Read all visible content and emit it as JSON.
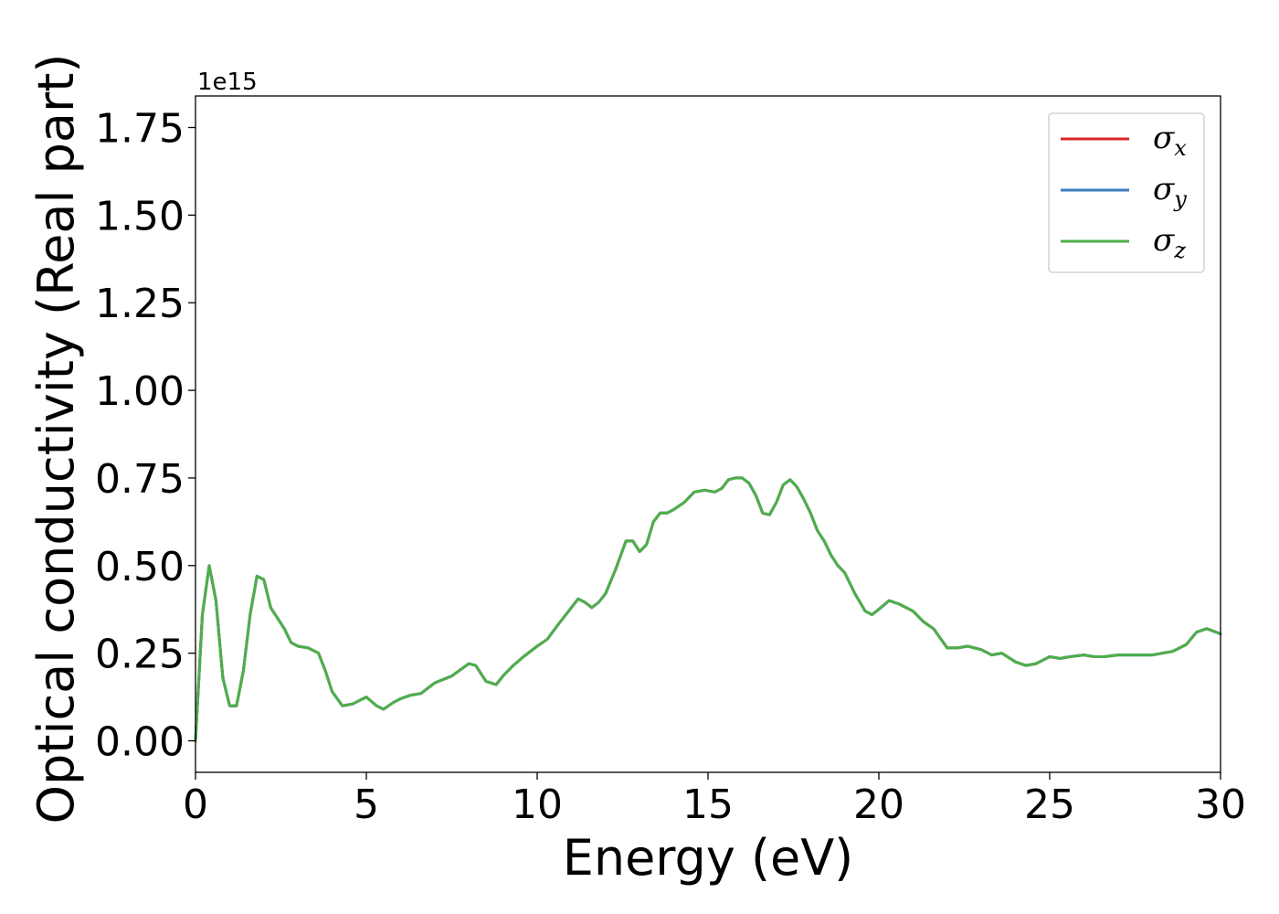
{
  "chart_data": {
    "type": "line",
    "title": "",
    "xlabel": "Energy (eV)",
    "ylabel": "Optical conductivity (Real part)",
    "y_offset_text": "1e15",
    "xlim": [
      0,
      30
    ],
    "ylim": [
      -0.09,
      1.84
    ],
    "xticks": [
      0,
      5,
      10,
      15,
      20,
      25,
      30
    ],
    "xtick_labels": [
      "0",
      "5",
      "10",
      "15",
      "20",
      "25",
      "30"
    ],
    "yticks": [
      0.0,
      0.25,
      0.5,
      0.75,
      1.0,
      1.25,
      1.5,
      1.75
    ],
    "ytick_labels": [
      "0.00",
      "0.25",
      "0.50",
      "0.75",
      "1.00",
      "1.25",
      "1.50",
      "1.75"
    ],
    "grid": false,
    "legend_position": "top-right",
    "legend": [
      {
        "symbol": "σ",
        "sub": "x",
        "color": "#d62728"
      },
      {
        "symbol": "σ",
        "sub": "y",
        "color": "#3b7dbf"
      },
      {
        "symbol": "σ",
        "sub": "z",
        "color": "#4daf4a"
      }
    ],
    "x": [
      0.0,
      0.2,
      0.4,
      0.6,
      0.8,
      1.0,
      1.2,
      1.4,
      1.6,
      1.8,
      2.0,
      2.2,
      2.4,
      2.6,
      2.8,
      3.0,
      3.3,
      3.6,
      3.8,
      4.0,
      4.3,
      4.6,
      5.0,
      5.3,
      5.5,
      5.8,
      6.0,
      6.3,
      6.6,
      7.0,
      7.5,
      8.0,
      8.2,
      8.5,
      8.8,
      9.0,
      9.3,
      9.6,
      10.0,
      10.3,
      10.6,
      11.0,
      11.2,
      11.4,
      11.6,
      11.8,
      12.0,
      12.3,
      12.6,
      12.8,
      13.0,
      13.2,
      13.4,
      13.6,
      13.8,
      14.0,
      14.3,
      14.6,
      14.9,
      15.2,
      15.4,
      15.6,
      15.8,
      16.0,
      16.2,
      16.4,
      16.6,
      16.8,
      17.0,
      17.2,
      17.4,
      17.6,
      17.8,
      18.0,
      18.2,
      18.4,
      18.6,
      18.8,
      19.0,
      19.3,
      19.6,
      19.8,
      20.0,
      20.3,
      20.6,
      21.0,
      21.3,
      21.6,
      22.0,
      22.3,
      22.6,
      23.0,
      23.3,
      23.6,
      24.0,
      24.3,
      24.6,
      25.0,
      25.3,
      25.6,
      26.0,
      26.3,
      26.6,
      27.0,
      27.3,
      27.6,
      28.0,
      28.3,
      28.6,
      29.0,
      29.3,
      29.6,
      30.0
    ],
    "series": [
      {
        "name": "σx",
        "color": "#d62728",
        "values": [
          0.0,
          0.36,
          0.5,
          0.4,
          0.18,
          0.1,
          0.1,
          0.2,
          0.36,
          0.47,
          0.46,
          0.38,
          0.35,
          0.32,
          0.28,
          0.27,
          0.265,
          0.25,
          0.2,
          0.14,
          0.1,
          0.105,
          0.125,
          0.1,
          0.09,
          0.11,
          0.12,
          0.13,
          0.135,
          0.165,
          0.185,
          0.22,
          0.215,
          0.17,
          0.16,
          0.185,
          0.215,
          0.24,
          0.27,
          0.29,
          0.33,
          0.38,
          0.405,
          0.395,
          0.38,
          0.395,
          0.42,
          0.49,
          0.57,
          0.57,
          0.54,
          0.56,
          0.625,
          0.65,
          0.65,
          0.66,
          0.68,
          0.71,
          0.715,
          0.71,
          0.72,
          0.745,
          0.75,
          0.75,
          0.735,
          0.7,
          0.65,
          0.645,
          0.68,
          0.73,
          0.745,
          0.725,
          0.69,
          0.65,
          0.6,
          0.57,
          0.53,
          0.5,
          0.48,
          0.42,
          0.37,
          0.36,
          0.375,
          0.4,
          0.39,
          0.37,
          0.34,
          0.32,
          0.265,
          0.265,
          0.27,
          0.26,
          0.245,
          0.25,
          0.225,
          0.215,
          0.22,
          0.24,
          0.235,
          0.24,
          0.245,
          0.24,
          0.24,
          0.245,
          0.245,
          0.245,
          0.245,
          0.25,
          0.255,
          0.275,
          0.31,
          0.32,
          0.305
        ]
      },
      {
        "name": "σy",
        "color": "#3b7dbf",
        "values": [
          0.0,
          0.36,
          0.5,
          0.4,
          0.18,
          0.1,
          0.1,
          0.2,
          0.36,
          0.47,
          0.46,
          0.38,
          0.35,
          0.32,
          0.28,
          0.27,
          0.265,
          0.25,
          0.2,
          0.14,
          0.1,
          0.105,
          0.125,
          0.1,
          0.09,
          0.11,
          0.12,
          0.13,
          0.135,
          0.165,
          0.185,
          0.22,
          0.215,
          0.17,
          0.16,
          0.185,
          0.215,
          0.24,
          0.27,
          0.29,
          0.33,
          0.38,
          0.405,
          0.395,
          0.38,
          0.395,
          0.42,
          0.49,
          0.57,
          0.57,
          0.54,
          0.56,
          0.625,
          0.65,
          0.65,
          0.66,
          0.68,
          0.71,
          0.715,
          0.71,
          0.72,
          0.745,
          0.75,
          0.75,
          0.735,
          0.7,
          0.65,
          0.645,
          0.68,
          0.73,
          0.745,
          0.725,
          0.69,
          0.65,
          0.6,
          0.57,
          0.53,
          0.5,
          0.48,
          0.42,
          0.37,
          0.36,
          0.375,
          0.4,
          0.39,
          0.37,
          0.34,
          0.32,
          0.265,
          0.265,
          0.27,
          0.26,
          0.245,
          0.25,
          0.225,
          0.215,
          0.22,
          0.24,
          0.235,
          0.24,
          0.245,
          0.24,
          0.24,
          0.245,
          0.245,
          0.245,
          0.245,
          0.25,
          0.255,
          0.275,
          0.31,
          0.32,
          0.305
        ]
      },
      {
        "name": "σz",
        "color": "#4daf4a",
        "values": [
          0.0,
          0.36,
          0.5,
          0.4,
          0.18,
          0.1,
          0.1,
          0.2,
          0.36,
          0.47,
          0.46,
          0.38,
          0.35,
          0.32,
          0.28,
          0.27,
          0.265,
          0.25,
          0.2,
          0.14,
          0.1,
          0.105,
          0.125,
          0.1,
          0.09,
          0.11,
          0.12,
          0.13,
          0.135,
          0.165,
          0.185,
          0.22,
          0.215,
          0.17,
          0.16,
          0.185,
          0.215,
          0.24,
          0.27,
          0.29,
          0.33,
          0.38,
          0.405,
          0.395,
          0.38,
          0.395,
          0.42,
          0.49,
          0.57,
          0.57,
          0.54,
          0.56,
          0.625,
          0.65,
          0.65,
          0.66,
          0.68,
          0.71,
          0.715,
          0.71,
          0.72,
          0.745,
          0.75,
          0.75,
          0.735,
          0.7,
          0.65,
          0.645,
          0.68,
          0.73,
          0.745,
          0.725,
          0.69,
          0.65,
          0.6,
          0.57,
          0.53,
          0.5,
          0.48,
          0.42,
          0.37,
          0.36,
          0.375,
          0.4,
          0.39,
          0.37,
          0.34,
          0.32,
          0.265,
          0.265,
          0.27,
          0.26,
          0.245,
          0.25,
          0.225,
          0.215,
          0.22,
          0.24,
          0.235,
          0.24,
          0.245,
          0.24,
          0.24,
          0.245,
          0.245,
          0.245,
          0.245,
          0.25,
          0.255,
          0.275,
          0.31,
          0.32,
          0.305
        ]
      }
    ]
  }
}
